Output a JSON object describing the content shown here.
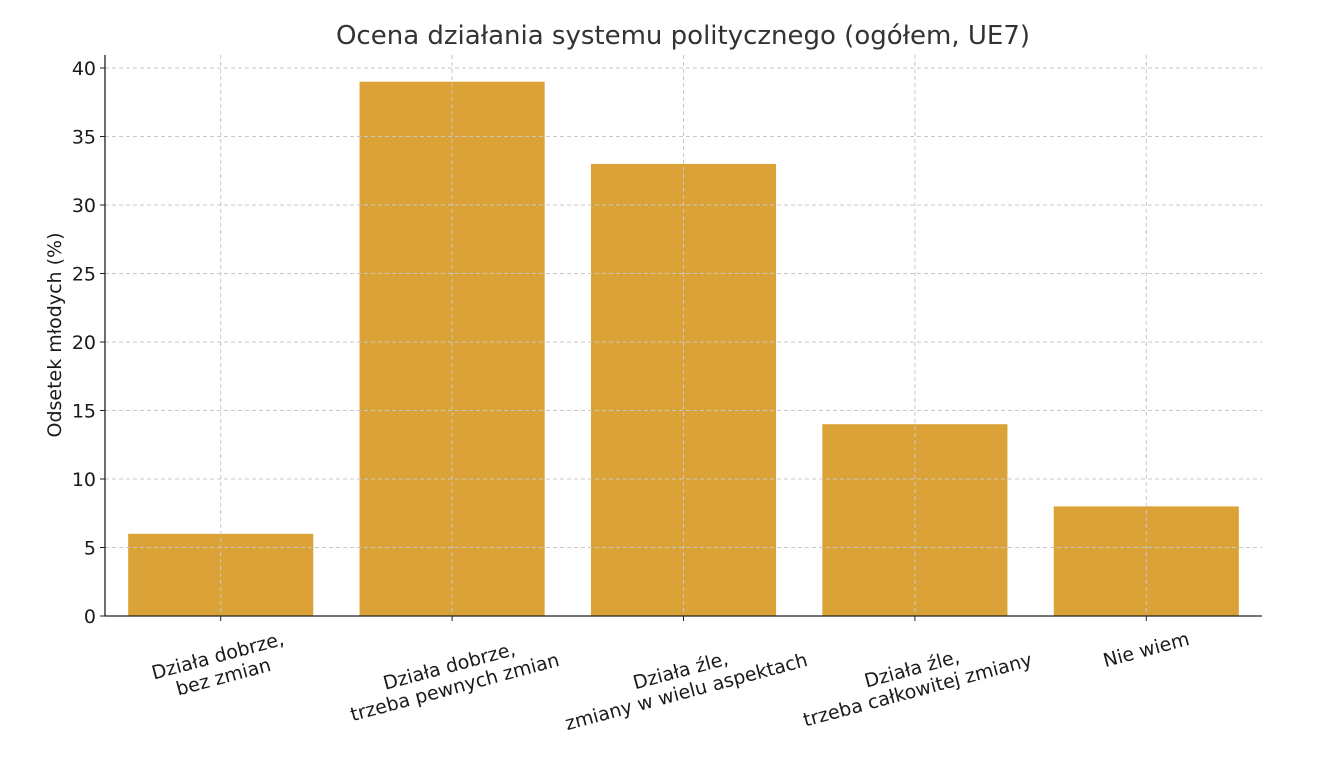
{
  "chart_data": {
    "type": "bar",
    "title": "Ocena działania systemu politycznego (ogółem, UE7)",
    "xlabel": "",
    "ylabel": "Odsetek młodych (%)",
    "categories": [
      [
        "Działa dobrze,",
        "bez zmian"
      ],
      [
        "Działa dobrze,",
        "trzeba pewnych zmian"
      ],
      [
        "Działa źle,",
        "zmiany w wielu aspektach"
      ],
      [
        "Działa źle,",
        "trzeba całkowitej zmiany"
      ],
      [
        "Nie wiem"
      ]
    ],
    "values": [
      6,
      39,
      33,
      14,
      8
    ],
    "ylim": [
      0,
      41
    ],
    "yticks": [
      0,
      5,
      10,
      15,
      20,
      25,
      30,
      35,
      40
    ],
    "grid": true,
    "label_rotation_deg": -15,
    "bar_color": "#DBA237"
  }
}
